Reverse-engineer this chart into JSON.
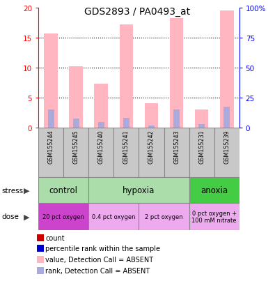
{
  "title": "GDS2893 / PA0493_at",
  "samples": [
    "GSM155244",
    "GSM155245",
    "GSM155240",
    "GSM155241",
    "GSM155242",
    "GSM155243",
    "GSM155231",
    "GSM155239"
  ],
  "pink_bars": [
    15.8,
    10.3,
    7.4,
    17.2,
    4.1,
    18.3,
    3.0,
    19.6
  ],
  "blue_bars": [
    3.1,
    1.5,
    0.9,
    1.7,
    0.4,
    3.0,
    0.6,
    3.5
  ],
  "ylim_left": [
    0,
    20
  ],
  "ylim_right": [
    0,
    100
  ],
  "yticks_left": [
    0,
    5,
    10,
    15,
    20
  ],
  "yticks_right": [
    0,
    25,
    50,
    75,
    100
  ],
  "ytick_labels_right": [
    "0",
    "25",
    "50",
    "75",
    "100%"
  ],
  "stress_groups": [
    {
      "label": "control",
      "start": 0,
      "end": 2,
      "color": "#aaddaa"
    },
    {
      "label": "hypoxia",
      "start": 2,
      "end": 6,
      "color": "#aaddaa"
    },
    {
      "label": "anoxia",
      "start": 6,
      "end": 8,
      "color": "#44cc44"
    }
  ],
  "dose_groups": [
    {
      "label": "20 pct oxygen",
      "start": 0,
      "end": 2,
      "color": "#cc44cc"
    },
    {
      "label": "0.4 pct oxygen",
      "start": 2,
      "end": 4,
      "color": "#eeaaee"
    },
    {
      "label": "2 pct oxygen",
      "start": 4,
      "end": 6,
      "color": "#eeaaee"
    },
    {
      "label": "0 pct oxygen +\n100 mM nitrate",
      "start": 6,
      "end": 8,
      "color": "#eeaaee"
    }
  ],
  "legend_items": [
    {
      "color": "#CC0000",
      "label": "count"
    },
    {
      "color": "#0000CC",
      "label": "percentile rank within the sample"
    },
    {
      "color": "#FFB6C1",
      "label": "value, Detection Call = ABSENT"
    },
    {
      "color": "#AAAADD",
      "label": "rank, Detection Call = ABSENT"
    }
  ],
  "bar_color_pink": "#FFB6C1",
  "bar_color_blue": "#AAAADD",
  "sample_box_color": "#C8C8C8",
  "grid_yticks": [
    5,
    10,
    15
  ]
}
